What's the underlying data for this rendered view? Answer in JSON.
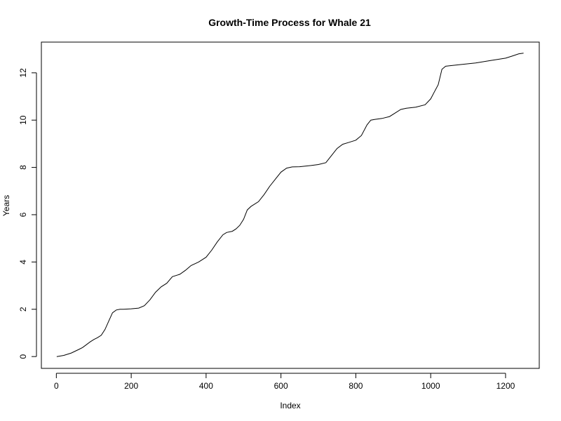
{
  "chart_data": {
    "type": "line",
    "title": "Growth-Time Process for Whale 21",
    "xlabel": "Index",
    "ylabel": "Years",
    "xlim": [
      -40,
      1290
    ],
    "ylim": [
      -0.5,
      13.3
    ],
    "x_ticks": [
      0,
      200,
      400,
      600,
      800,
      1000,
      1200
    ],
    "y_ticks": [
      0,
      2,
      4,
      6,
      8,
      10,
      12
    ],
    "grid": false,
    "legend": "none",
    "line_color": "#000000",
    "series": [
      {
        "x": [
          1,
          20,
          40,
          60,
          70,
          80,
          90,
          100,
          110,
          120,
          130,
          140,
          150,
          160,
          170,
          180,
          200,
          220,
          235,
          250,
          265,
          280,
          295,
          310,
          330,
          345,
          360,
          380,
          400,
          415,
          430,
          445,
          455,
          470,
          480,
          490,
          500,
          510,
          520,
          540,
          555,
          570,
          585,
          600,
          615,
          630,
          650,
          680,
          700,
          720,
          735,
          750,
          765,
          780,
          800,
          815,
          830,
          840,
          850,
          870,
          890,
          905,
          920,
          935,
          960,
          985,
          1000,
          1010,
          1020,
          1030,
          1040,
          1050,
          1080,
          1120,
          1160,
          1200,
          1220,
          1235,
          1248
        ],
        "y": [
          0.0,
          0.05,
          0.15,
          0.3,
          0.38,
          0.5,
          0.62,
          0.72,
          0.8,
          0.9,
          1.15,
          1.5,
          1.85,
          1.97,
          2.0,
          2.0,
          2.02,
          2.05,
          2.15,
          2.4,
          2.72,
          2.95,
          3.1,
          3.38,
          3.48,
          3.65,
          3.85,
          4.0,
          4.2,
          4.5,
          4.85,
          5.15,
          5.25,
          5.3,
          5.4,
          5.55,
          5.8,
          6.2,
          6.35,
          6.55,
          6.85,
          7.2,
          7.5,
          7.8,
          7.97,
          8.02,
          8.03,
          8.08,
          8.12,
          8.2,
          8.5,
          8.8,
          8.98,
          9.05,
          9.15,
          9.35,
          9.8,
          10.0,
          10.03,
          10.07,
          10.15,
          10.3,
          10.45,
          10.5,
          10.55,
          10.65,
          10.9,
          11.2,
          11.5,
          12.15,
          12.28,
          12.3,
          12.35,
          12.42,
          12.52,
          12.62,
          12.72,
          12.8,
          12.83
        ]
      }
    ]
  }
}
